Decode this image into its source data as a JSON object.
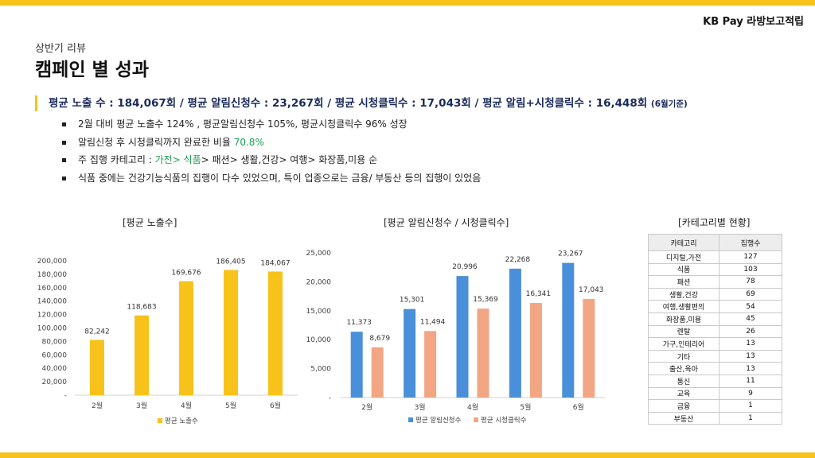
{
  "brand": "KB Pay 라방보고적립",
  "subtitle": "상반기 리뷰",
  "title": "캠페인 별 성과",
  "headline": {
    "main": "평균 노출 수 : 184,067회 / 평균 알림신청수 : 23,267회 / 평균 시청클릭수 : 17,043회 / 평균 알림+시청클릭수 : 16,448회",
    "note": "(6월기준)"
  },
  "bullets": {
    "b1": "2월 대비 평균 노출수 124% , 평균알림신청수 105%, 평균시청클릭수 96% 성장",
    "b2_pre": "알림신청 후 시청클릭까지 완료한 비율 ",
    "b2_hl": "70.8%",
    "b3_pre": "주 집행 카테고리 : ",
    "b3_hl": "가전> 식품",
    "b3_post": "> 패션> 생활,건강> 여행> 화장품,미용 순",
    "b4": "식품 중에는 건강기능식품의 집행이 다수 있었으며, 특이 업종으로는 금융/ 부동산  등의 집행이 있었음"
  },
  "colors": {
    "yellow": "#f7c21a",
    "blue": "#4a8fd9",
    "salmon": "#f2a683",
    "green": "#1aa053",
    "navy": "#1a2a5a"
  },
  "chart_data": [
    {
      "type": "bar",
      "title": "[평균 노출수]",
      "categories": [
        "2월",
        "3월",
        "4월",
        "5월",
        "6월"
      ],
      "series": [
        {
          "name": "평균 노출수",
          "values": [
            82242,
            118683,
            169676,
            186405,
            184067
          ]
        }
      ],
      "value_labels": [
        "82,242",
        "118,683",
        "169,676",
        "186,405",
        "184,067"
      ],
      "ylim": [
        0,
        200000
      ],
      "yticks": [
        0,
        20000,
        40000,
        60000,
        80000,
        100000,
        120000,
        140000,
        160000,
        180000,
        200000
      ],
      "ytick_labels": [
        "-",
        "20,000",
        "40,000",
        "60,000",
        "80,000",
        "100,000",
        "120,000",
        "140,000",
        "160,000",
        "180,000",
        "200,000"
      ],
      "legend": "bottom"
    },
    {
      "type": "bar",
      "title": "[평균 알림신청수  / 시청클릭수]",
      "categories": [
        "2월",
        "3월",
        "4월",
        "5월",
        "6월"
      ],
      "series": [
        {
          "name": "평균 알림신청수",
          "values": [
            11373,
            15301,
            20996,
            22268,
            23267
          ],
          "value_labels": [
            "11,373",
            "15,301",
            "20,996",
            "22,268",
            "23,267"
          ]
        },
        {
          "name": "평균 시청클릭수",
          "values": [
            8679,
            11494,
            15369,
            16341,
            17043
          ],
          "value_labels": [
            "8,679",
            "11,494",
            "15,369",
            "16,341",
            "17,043"
          ]
        }
      ],
      "ylim": [
        0,
        25000
      ],
      "yticks": [
        0,
        5000,
        10000,
        15000,
        20000,
        25000
      ],
      "ytick_labels": [
        "-",
        "5,000",
        "10,000",
        "15,000",
        "20,000",
        "25,000"
      ],
      "legend": "bottom"
    },
    {
      "type": "table",
      "title": "[카테고리별 현황]",
      "columns": [
        "카테고리",
        "집행수"
      ],
      "rows": [
        [
          "디지털,가전",
          "127"
        ],
        [
          "식품",
          "103"
        ],
        [
          "패션",
          "78"
        ],
        [
          "생활,건강",
          "69"
        ],
        [
          "여행,생활편의",
          "54"
        ],
        [
          "화장품,미용",
          "45"
        ],
        [
          "렌탈",
          "26"
        ],
        [
          "가구,인테리어",
          "13"
        ],
        [
          "기타",
          "13"
        ],
        [
          "출산,육아",
          "13"
        ],
        [
          "통신",
          "11"
        ],
        [
          "교육",
          "9"
        ],
        [
          "금융",
          "1"
        ],
        [
          "부동산",
          "1"
        ]
      ]
    }
  ]
}
